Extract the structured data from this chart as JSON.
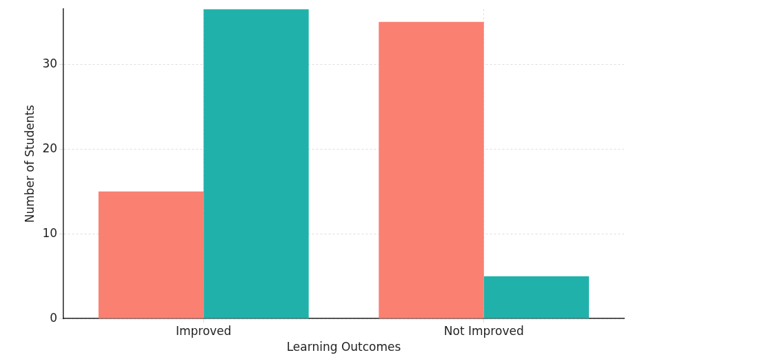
{
  "chart_data": {
    "type": "bar",
    "xlabel": "Learning Outcomes",
    "ylabel": "Number of Students",
    "categories": [
      "Improved",
      "Not Improved"
    ],
    "series": [
      {
        "color": "#fa8072",
        "values": [
          15,
          35
        ]
      },
      {
        "color": "#20b2aa",
        "values": [
          36.5,
          5
        ]
      }
    ],
    "ylim": [
      0,
      36.5
    ],
    "yticks": [
      0,
      10,
      20,
      30
    ],
    "grid": true,
    "legend": false
  }
}
